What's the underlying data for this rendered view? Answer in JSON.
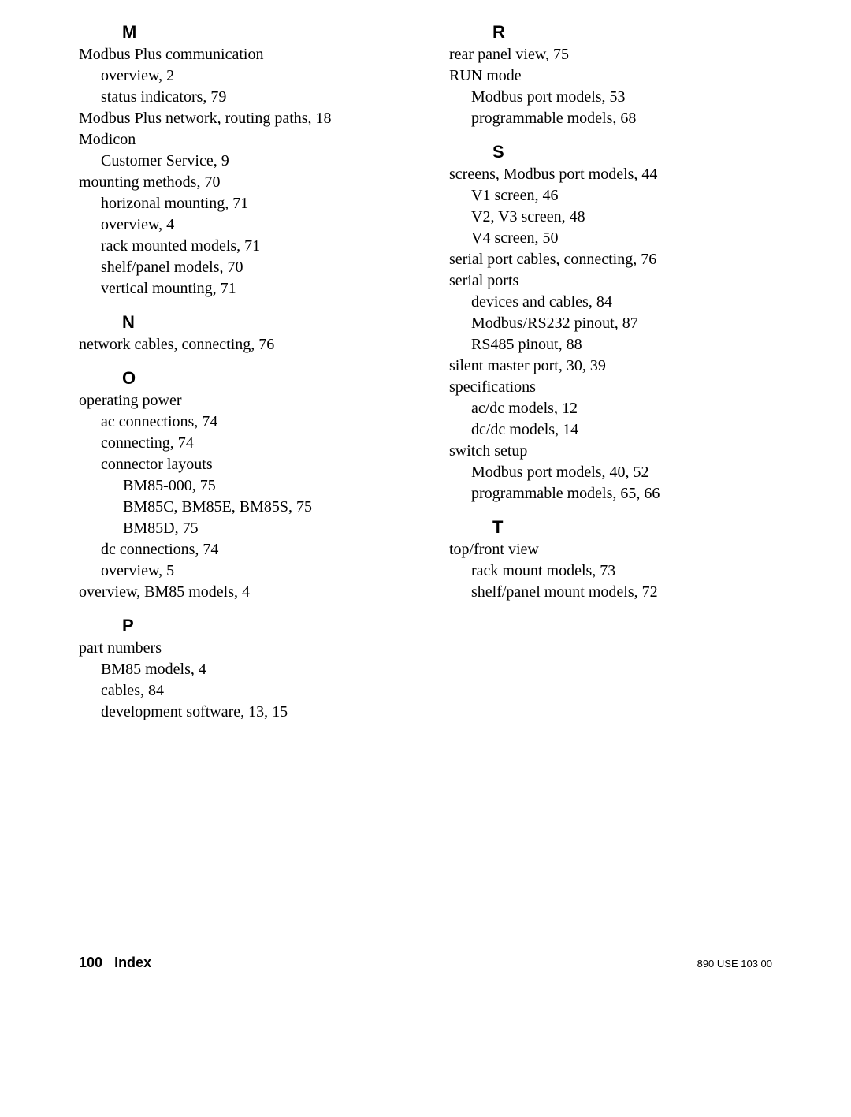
{
  "left": {
    "M": {
      "heading": "M",
      "e1": "Modbus Plus communication",
      "e1a": "overview,  2",
      "e1b": "status indicators,  79",
      "e2": "Modbus Plus network, routing paths,  18",
      "e3": "Modicon",
      "e3a": "Customer Service, 9",
      "e4": "mounting methods,  70",
      "e4a": "horizonal mounting,  71",
      "e4b": "overview,  4",
      "e4c": "rack mounted models,  71",
      "e4d": "shelf/panel models,  70",
      "e4e": "vertical mounting,  71"
    },
    "N": {
      "heading": "N",
      "e1": "network cables, connecting,  76"
    },
    "O": {
      "heading": "O",
      "e1": "operating power",
      "e1a": "ac connections,  74",
      "e1b": "connecting,  74",
      "e1c": "connector layouts",
      "e1c1": "BM85-000,    75",
      "e1c2": "BM85C, BM85E, BM85S,  75",
      "e1c3": "BM85D,  75",
      "e1d": "dc connections,  74",
      "e1e": "overview,  5",
      "e2": "overview, BM85 models,  4"
    },
    "P": {
      "heading": "P",
      "e1": "part numbers",
      "e1a": "BM85 models, 4",
      "e1b": "cables, 84",
      "e1c": "development software,  13,  15"
    }
  },
  "right": {
    "R": {
      "heading": "R",
      "e1": "rear panel view,  75",
      "e2": "RUN mode",
      "e2a": "Modbus port models,  53",
      "e2b": "programmable models,  68"
    },
    "S": {
      "heading": "S",
      "e1": "screens, Modbus port models,  44",
      "e1a": "V1 screen,  46",
      "e1b": "V2, V3 screen,  48",
      "e1c": "V4 screen,  50",
      "e2": "serial port cables, connecting,  76",
      "e3": "serial ports",
      "e3a": "devices and cables, 84",
      "e3b": "Modbus/RS232 pinout, 87",
      "e3c": "RS485 pinout, 88",
      "e4": "silent master port,  30,  39",
      "e5": "specifications",
      "e5a": "ac/dc models,  12",
      "e5b": "dc/dc models,  14",
      "e6": "switch setup",
      "e6a": "Modbus port models,  40,  52",
      "e6b": "programmable models,  65,  66"
    },
    "T": {
      "heading": "T",
      "e1": "top/front view",
      "e1a": "rack mount models,  73",
      "e1b": "shelf/panel mount models,  72"
    }
  },
  "footer": {
    "page": "100",
    "title": "Index",
    "doc": "890 USE 103 00"
  }
}
